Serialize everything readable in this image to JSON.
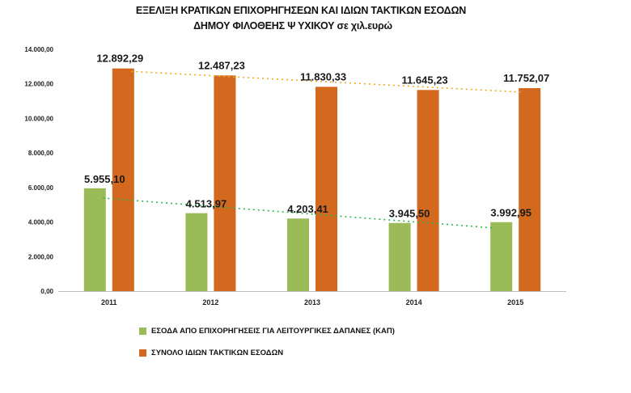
{
  "chart_data": {
    "type": "bar",
    "title_line1": "ΕΞΕΛΙΞΗ ΚΡΑΤΙΚΩΝ ΕΠΙΧΟΡΗΓΗΣΕΩΝ ΚΑΙ ΙΔΙΩΝ ΤΑΚΤΙΚΩΝ ΕΣΟΔΩΝ",
    "title_line2": "ΔΗΜΟΥ ΦΙΛΟΘΕΗΣ Ψ ΥΧΙΚΟΥ σε χιλ.ευρώ",
    "categories": [
      "2011",
      "2012",
      "2013",
      "2014",
      "2015"
    ],
    "ylim": [
      0,
      14000
    ],
    "yticks": [
      "0,00",
      "2.000,00",
      "4.000,00",
      "6.000,00",
      "8.000,00",
      "10.000,00",
      "12.000,00",
      "14.000,00"
    ],
    "grid": false,
    "legend_position": "bottom",
    "series": [
      {
        "name": "ΕΣΟΔΑ ΑΠΟ ΕΠΙΧΟΡΗΓΗΣΕΙΣ ΓΙΑ ΛΕΙΤΟΥΡΓΙΚΕΣ ΔΑΠΑΝΕΣ (ΚΑΠ)",
        "values": [
          5955.1,
          4513.97,
          4203.41,
          3945.5,
          3992.95
        ],
        "labels": [
          "5.955,10",
          "4.513,97",
          "4.203,41",
          "3.945,50",
          "3.992,95"
        ],
        "color": "#9bbb59",
        "trend_color": "#2db84d"
      },
      {
        "name": "ΣΥΝΟΛΟ ΙΔΙΩΝ ΤΑΚΤΙΚΩΝ ΕΣΟΔΩΝ",
        "values": [
          12892.29,
          12487.23,
          11830.33,
          11645.23,
          11752.07
        ],
        "labels": [
          "12.892,29",
          "12.487,23",
          "11.830,33",
          "11.645,23",
          "11.752,07"
        ],
        "color": "#d2691e",
        "trend_color": "#f5a623"
      }
    ]
  }
}
